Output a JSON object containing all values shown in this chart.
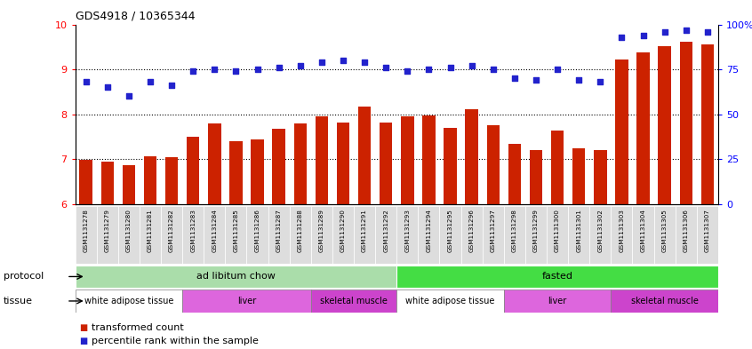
{
  "title": "GDS4918 / 10365344",
  "samples": [
    "GSM1131278",
    "GSM1131279",
    "GSM1131280",
    "GSM1131281",
    "GSM1131282",
    "GSM1131283",
    "GSM1131284",
    "GSM1131285",
    "GSM1131286",
    "GSM1131287",
    "GSM1131288",
    "GSM1131289",
    "GSM1131290",
    "GSM1131291",
    "GSM1131292",
    "GSM1131293",
    "GSM1131294",
    "GSM1131295",
    "GSM1131296",
    "GSM1131297",
    "GSM1131298",
    "GSM1131299",
    "GSM1131300",
    "GSM1131301",
    "GSM1131302",
    "GSM1131303",
    "GSM1131304",
    "GSM1131305",
    "GSM1131306",
    "GSM1131307"
  ],
  "bar_values": [
    6.98,
    6.95,
    6.87,
    7.07,
    7.05,
    7.5,
    7.8,
    7.4,
    7.44,
    7.68,
    7.8,
    7.95,
    7.82,
    8.17,
    7.82,
    7.95,
    7.97,
    7.7,
    8.12,
    7.75,
    7.35,
    7.2,
    7.63,
    7.25,
    7.2,
    9.22,
    9.38,
    9.52,
    9.62,
    9.55
  ],
  "dot_percentiles": [
    68,
    65,
    60,
    68,
    66,
    74,
    75,
    74,
    75,
    76,
    77,
    79,
    80,
    79,
    76,
    74,
    75,
    76,
    77,
    75,
    70,
    69,
    75,
    69,
    68,
    93,
    94,
    96,
    97,
    96
  ],
  "ylim_left": [
    6,
    10
  ],
  "ylim_right": [
    0,
    100
  ],
  "yticks_left": [
    6,
    7,
    8,
    9,
    10
  ],
  "yticks_right": [
    0,
    25,
    50,
    75,
    100
  ],
  "bar_color": "#cc2200",
  "dot_color": "#2222cc",
  "protocol_groups": [
    {
      "label": "ad libitum chow",
      "start": 0,
      "end": 14,
      "color": "#aaddaa"
    },
    {
      "label": "fasted",
      "start": 15,
      "end": 29,
      "color": "#44dd44"
    }
  ],
  "tissue_groups": [
    {
      "label": "white adipose tissue",
      "start": 0,
      "end": 4,
      "color": "#ffffff"
    },
    {
      "label": "liver",
      "start": 5,
      "end": 10,
      "color": "#dd66dd"
    },
    {
      "label": "skeletal muscle",
      "start": 11,
      "end": 14,
      "color": "#cc44cc"
    },
    {
      "label": "white adipose tissue",
      "start": 15,
      "end": 19,
      "color": "#ffffff"
    },
    {
      "label": "liver",
      "start": 20,
      "end": 24,
      "color": "#dd66dd"
    },
    {
      "label": "skeletal muscle",
      "start": 25,
      "end": 29,
      "color": "#cc44cc"
    }
  ],
  "legend_items": [
    {
      "label": "transformed count",
      "color": "#cc2200"
    },
    {
      "label": "percentile rank within the sample",
      "color": "#2222cc"
    }
  ],
  "xlim": [
    -0.5,
    29.5
  ],
  "bar_width": 0.6
}
